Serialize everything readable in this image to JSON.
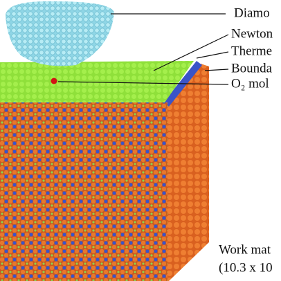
{
  "labels": {
    "diamond": "Diamo",
    "newton": "Newton",
    "thermo": "Therme",
    "boundary": "Bounda",
    "o2": "O₂ mol",
    "work": "Work mat",
    "size": "(10.3 x 10"
  }
}
